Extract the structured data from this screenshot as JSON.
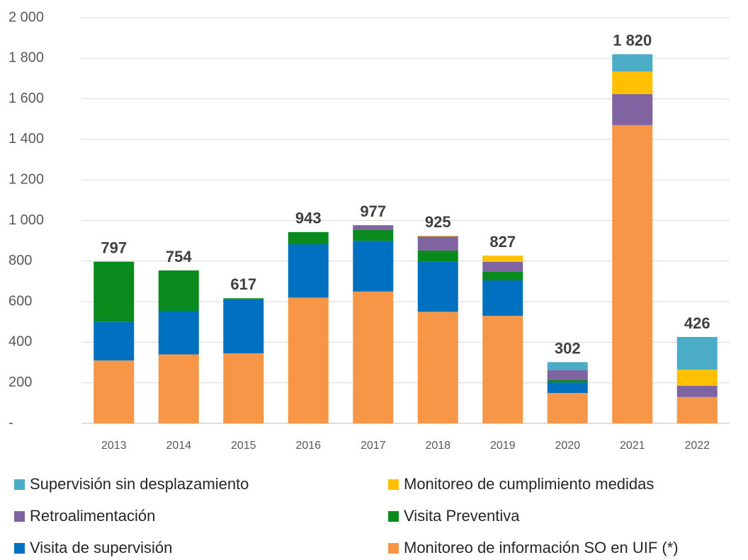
{
  "chart_data": {
    "type": "stacked_bar",
    "categories": [
      "2013",
      "2014",
      "2015",
      "2016",
      "2017",
      "2018",
      "2019",
      "2020",
      "2021",
      "2022"
    ],
    "series": [
      {
        "name": "Supervisión sin desplazamiento",
        "color": "#4bacc6",
        "values": [
          null,
          null,
          null,
          null,
          null,
          null,
          null,
          40,
          85,
          161
        ]
      },
      {
        "name": "Monitoreo de cumplimiento medidas",
        "color": "#ffc000",
        "values": [
          null,
          null,
          null,
          null,
          null,
          3,
          31,
          null,
          112,
          80
        ]
      },
      {
        "name": "Retroalimentación",
        "color": "#8064a2",
        "values": [
          null,
          null,
          null,
          null,
          24,
          70,
          49,
          49,
          153,
          55
        ]
      },
      {
        "name": "Visita Preventiva",
        "color": "#088a1c",
        "values": [
          297,
          199,
          5,
          60,
          53,
          53,
          42,
          11,
          null,
          null
        ]
      },
      {
        "name": "Visita de supervisión",
        "color": "#0070c0",
        "values": [
          190,
          215,
          267,
          263,
          250,
          249,
          175,
          52,
          null,
          null
        ]
      },
      {
        "name": "Monitoreo de información SO en UIF (*)",
        "color": "#f79646",
        "values": [
          310,
          340,
          345,
          620,
          650,
          550,
          530,
          150,
          1470,
          130
        ]
      }
    ],
    "totals": [
      797,
      754,
      617,
      943,
      977,
      925,
      827,
      302,
      1820,
      426
    ],
    "total_labels": [
      "797",
      "754",
      "617",
      "943",
      "977",
      "925",
      "827",
      "302",
      "1 820",
      "426"
    ],
    "ylim": [
      0,
      2000
    ],
    "yticks": [
      {
        "value": 0,
        "label": "-"
      },
      200,
      400,
      600,
      800,
      {
        "value": 1000,
        "label": "1 000"
      },
      {
        "value": 1200,
        "label": "1 200"
      },
      {
        "value": 1400,
        "label": "1 400"
      },
      {
        "value": 1600,
        "label": "1 600"
      },
      {
        "value": 1800,
        "label": "1 800"
      },
      {
        "value": 2000,
        "label": "2 000"
      }
    ],
    "grid": true
  }
}
